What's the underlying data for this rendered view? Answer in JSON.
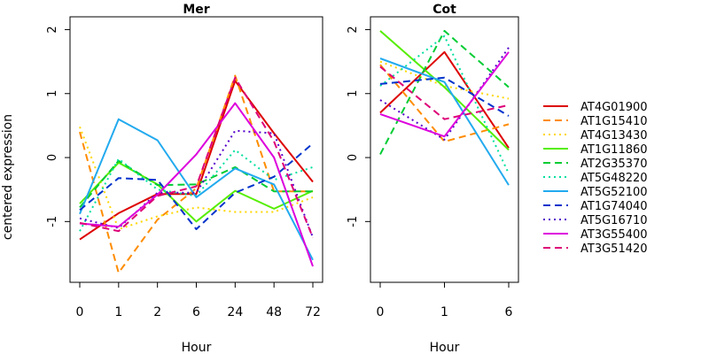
{
  "figure": {
    "ylabel": "centered expression",
    "xlabel": "Hour"
  },
  "chart_data": [
    {
      "type": "line",
      "title": "Mer",
      "xlabel": "Hour",
      "ylabel": "centered expression",
      "categories": [
        "0",
        "1",
        "2",
        "6",
        "24",
        "48",
        "72"
      ],
      "ylim": [
        -1.95,
        2.2
      ],
      "yticks": [
        -1,
        0,
        1,
        2
      ],
      "grid": false,
      "series": [
        {
          "name": "AT4G01900",
          "color": "#dd0000",
          "dash": "solid",
          "values": [
            -1.28,
            -0.87,
            -0.57,
            -0.57,
            1.2,
            0.38,
            -0.38
          ]
        },
        {
          "name": "AT1G15410",
          "color": "#ff8c00",
          "dash": "dashed",
          "values": [
            0.4,
            -1.8,
            -0.97,
            -0.48,
            1.28,
            -0.53,
            -0.53
          ]
        },
        {
          "name": "AT4G13430",
          "color": "#ffd700",
          "dash": "dotted",
          "values": [
            0.48,
            -1.12,
            -0.92,
            -0.78,
            -0.85,
            -0.85,
            -0.62
          ]
        },
        {
          "name": "AT1G11860",
          "color": "#55ee00",
          "dash": "solid",
          "values": [
            -0.72,
            -0.08,
            -0.42,
            -1.0,
            -0.52,
            -0.8,
            -0.52
          ]
        },
        {
          "name": "AT2G35370",
          "color": "#00cc33",
          "dash": "dashed",
          "values": [
            -0.78,
            -0.05,
            -0.43,
            -0.42,
            -0.15,
            -0.53,
            -0.53
          ]
        },
        {
          "name": "AT5G48220",
          "color": "#00e0a0",
          "dash": "dotted",
          "values": [
            -1.15,
            -0.02,
            -0.5,
            -0.6,
            0.12,
            -0.35,
            -0.15
          ]
        },
        {
          "name": "AT5G52100",
          "color": "#22aaee",
          "dash": "solid",
          "values": [
            -0.88,
            0.6,
            0.27,
            -0.62,
            -0.17,
            -0.42,
            -1.6
          ]
        },
        {
          "name": "AT1G74040",
          "color": "#0033cc",
          "dash": "dashed",
          "values": [
            -0.82,
            -0.32,
            -0.35,
            -1.12,
            -0.55,
            -0.3,
            0.22
          ]
        },
        {
          "name": "AT5G16710",
          "color": "#5500cc",
          "dash": "dotted",
          "values": [
            -0.95,
            -1.1,
            -0.55,
            -0.55,
            0.42,
            0.38,
            -1.25
          ]
        },
        {
          "name": "AT3G55400",
          "color": "#dd00dd",
          "dash": "solid",
          "values": [
            -1.03,
            -1.08,
            -0.58,
            0.05,
            0.85,
            0.0,
            -1.7
          ]
        },
        {
          "name": "AT3G51420",
          "color": "#dd0077",
          "dash": "dashed",
          "values": [
            -1.02,
            -1.15,
            -0.6,
            -0.45,
            1.25,
            0.25,
            -1.25
          ]
        }
      ]
    },
    {
      "type": "line",
      "title": "Cot",
      "xlabel": "Hour",
      "ylabel": "",
      "categories": [
        "0",
        "1",
        "6"
      ],
      "ylim": [
        -1.95,
        2.2
      ],
      "yticks": [
        -1,
        0,
        1,
        2
      ],
      "grid": false,
      "series": [
        {
          "name": "AT4G01900",
          "color": "#dd0000",
          "dash": "solid",
          "values": [
            0.7,
            1.65,
            0.15
          ]
        },
        {
          "name": "AT1G15410",
          "color": "#ff8c00",
          "dash": "dashed",
          "values": [
            1.45,
            0.25,
            0.52
          ]
        },
        {
          "name": "AT4G13430",
          "color": "#ffd700",
          "dash": "dotted",
          "values": [
            1.5,
            1.12,
            0.92
          ]
        },
        {
          "name": "AT1G11860",
          "color": "#55ee00",
          "dash": "solid",
          "values": [
            1.98,
            1.1,
            0.12
          ]
        },
        {
          "name": "AT2G35370",
          "color": "#00cc33",
          "dash": "dashed",
          "values": [
            0.05,
            1.98,
            1.1
          ]
        },
        {
          "name": "AT5G48220",
          "color": "#00e0a0",
          "dash": "dotted",
          "values": [
            1.12,
            1.9,
            -0.25
          ]
        },
        {
          "name": "AT5G52100",
          "color": "#22aaee",
          "dash": "solid",
          "values": [
            1.55,
            1.18,
            -0.43
          ]
        },
        {
          "name": "AT1G74040",
          "color": "#0033cc",
          "dash": "dashed",
          "values": [
            1.15,
            1.25,
            0.65
          ]
        },
        {
          "name": "AT5G16710",
          "color": "#5500cc",
          "dash": "dotted",
          "values": [
            0.9,
            0.28,
            1.72
          ]
        },
        {
          "name": "AT3G55400",
          "color": "#dd00dd",
          "dash": "solid",
          "values": [
            0.68,
            0.33,
            1.65
          ]
        },
        {
          "name": "AT3G51420",
          "color": "#dd0077",
          "dash": "dashed",
          "values": [
            1.42,
            0.6,
            0.82
          ]
        }
      ]
    }
  ],
  "legend": {
    "placement": "right"
  }
}
